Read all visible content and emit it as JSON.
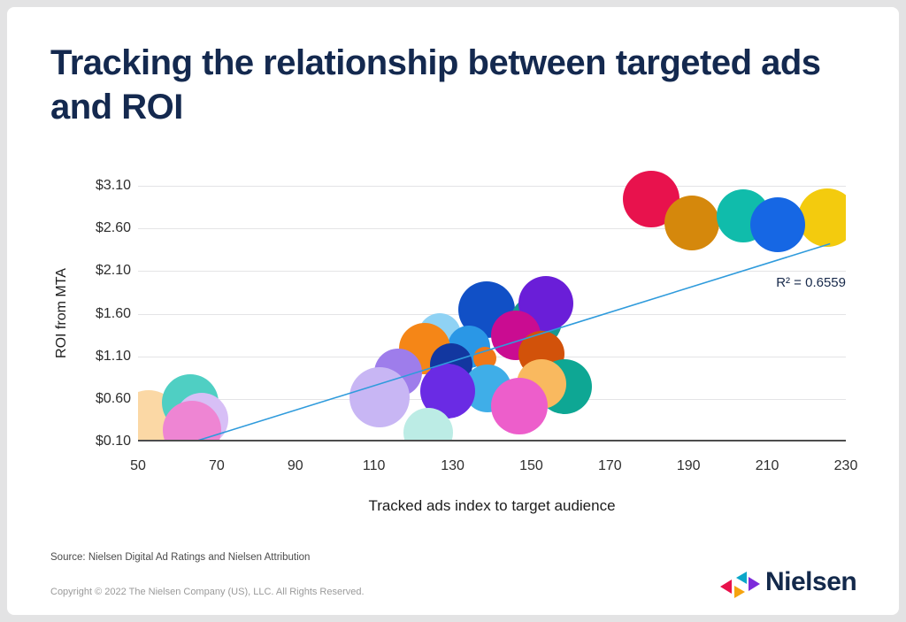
{
  "title": "Tracking the relationship between targeted ads and ROI",
  "footer": {
    "source": "Source: Nielsen Digital Ad Ratings and Nielsen Attribution",
    "copyright": "Copyright © 2022 The Nielsen Company (US), LLC. All Rights Reserved."
  },
  "logo": {
    "wordmark": "Nielsen",
    "mark_icons": [
      "triangle-left-red",
      "triangle-left-teal",
      "triangle-right-purple",
      "triangle-right-orange"
    ],
    "mark_colors": {
      "red": "#E8114B",
      "teal": "#0BA7C9",
      "purple": "#7D2BDB",
      "orange": "#F5A30F"
    }
  },
  "colors": {
    "title_navy": "#14294F",
    "trendline_blue": "#2F9BDC",
    "axis_line": "#4d4d4d",
    "gridline": "#e4e4e6",
    "card_bg": "#ffffff"
  },
  "chart_data": {
    "type": "scatter",
    "subtype": "bubble",
    "xlabel": "Tracked ads index to target audience",
    "ylabel": "ROI from MTA",
    "xlim": [
      50,
      230
    ],
    "ylim": [
      0.1,
      3.1
    ],
    "grid": "horizontal-only",
    "x_ticks": [
      50,
      70,
      90,
      110,
      130,
      150,
      170,
      190,
      210,
      230
    ],
    "y_ticks": [
      {
        "v": 0.1,
        "label": "$0.10"
      },
      {
        "v": 0.6,
        "label": "$0.60"
      },
      {
        "v": 1.1,
        "label": "$1.10"
      },
      {
        "v": 1.6,
        "label": "$1.60"
      },
      {
        "v": 2.1,
        "label": "$2.10"
      },
      {
        "v": 2.6,
        "label": "$2.60"
      },
      {
        "v": 3.1,
        "label": "$3.10"
      }
    ],
    "r_squared_label": "R² = 0.6559",
    "trendline": {
      "x1": 64.4,
      "y1": 0.1,
      "x2": 226.0,
      "y2": 2.42,
      "color": "#2F9BDC"
    },
    "points": [
      {
        "x": 52.7,
        "y": 0.32,
        "r": 37,
        "color": "#FBD8A5"
      },
      {
        "x": 63.3,
        "y": 0.56,
        "r": 32,
        "color": "#4FCFC3"
      },
      {
        "x": 66.2,
        "y": 0.36,
        "r": 30,
        "color": "#D7BFF6"
      },
      {
        "x": 63.7,
        "y": 0.23,
        "r": 33,
        "color": "#EE85D3"
      },
      {
        "x": 126.7,
        "y": 1.36,
        "r": 24,
        "color": "#8FD2F4"
      },
      {
        "x": 138.7,
        "y": 1.65,
        "r": 32,
        "color": "#1150C6"
      },
      {
        "x": 134.2,
        "y": 1.21,
        "r": 24,
        "color": "#2A97E6"
      },
      {
        "x": 122.9,
        "y": 1.19,
        "r": 29,
        "color": "#F58617"
      },
      {
        "x": 151.3,
        "y": 1.51,
        "r": 29,
        "color": "#18988F"
      },
      {
        "x": 153.7,
        "y": 1.72,
        "r": 31,
        "color": "#6A1ED8"
      },
      {
        "x": 146.1,
        "y": 1.35,
        "r": 28,
        "color": "#CA0C91"
      },
      {
        "x": 152.6,
        "y": 1.13,
        "r": 26,
        "color": "#D2520A"
      },
      {
        "x": 138.2,
        "y": 1.08,
        "r": 13,
        "color": "#F07818"
      },
      {
        "x": 129.7,
        "y": 1.0,
        "r": 24,
        "color": "#1237A0"
      },
      {
        "x": 116.2,
        "y": 0.91,
        "r": 27,
        "color": "#9E7DEB"
      },
      {
        "x": 111.4,
        "y": 0.62,
        "r": 34,
        "color": "#C8B6F4"
      },
      {
        "x": 138.9,
        "y": 0.72,
        "r": 27,
        "color": "#3FAEE8"
      },
      {
        "x": 128.8,
        "y": 0.69,
        "r": 31,
        "color": "#6A2BE4"
      },
      {
        "x": 158.5,
        "y": 0.74,
        "r": 31,
        "color": "#0EA794"
      },
      {
        "x": 152.6,
        "y": 0.77,
        "r": 28,
        "color": "#F9B95F"
      },
      {
        "x": 147.0,
        "y": 0.52,
        "r": 32,
        "color": "#ED5ECB"
      },
      {
        "x": 123.8,
        "y": 0.2,
        "r": 28,
        "color": "#BCECE5"
      },
      {
        "x": 180.5,
        "y": 2.94,
        "r": 32,
        "color": "#E8124D"
      },
      {
        "x": 190.9,
        "y": 2.66,
        "r": 31,
        "color": "#D5880C"
      },
      {
        "x": 203.9,
        "y": 2.75,
        "r": 30,
        "color": "#10BCAB"
      },
      {
        "x": 225.3,
        "y": 2.73,
        "r": 33,
        "color": "#F3CB0E"
      },
      {
        "x": 212.7,
        "y": 2.64,
        "r": 31,
        "color": "#1667E4"
      }
    ]
  }
}
